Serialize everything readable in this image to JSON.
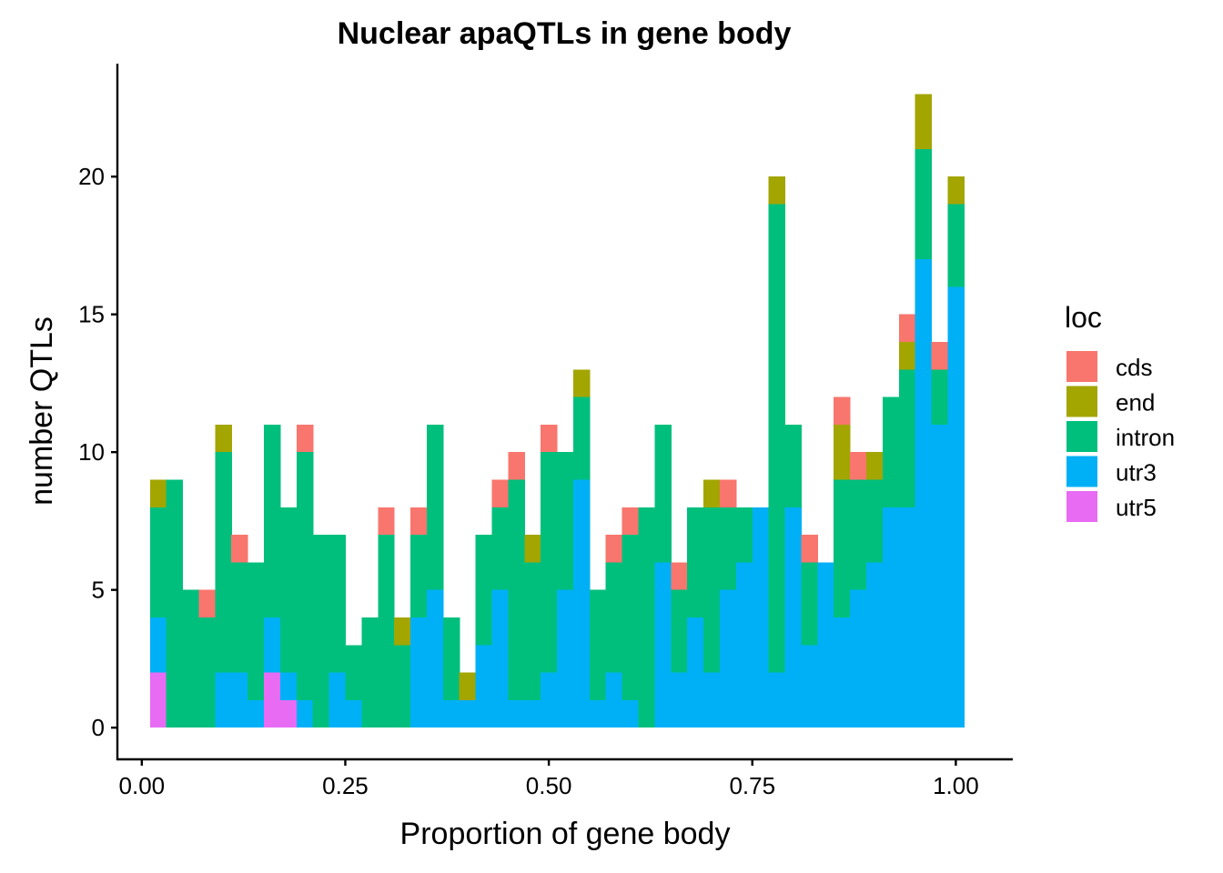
{
  "chart_data": {
    "type": "bar",
    "subtype": "stacked-histogram",
    "title": "Nuclear apaQTLs in gene body",
    "xlabel": "Proportion of gene body",
    "ylabel": "number QTLs",
    "xlim": [
      -0.03,
      1.07
    ],
    "ylim": [
      -1.15,
      24.1
    ],
    "x_ticks": [
      0.0,
      0.25,
      0.5,
      0.75,
      1.0
    ],
    "x_tick_labels": [
      "0.00",
      "0.25",
      "0.50",
      "0.75",
      "1.00"
    ],
    "y_ticks": [
      0,
      5,
      10,
      15,
      20
    ],
    "y_tick_labels": [
      "0",
      "5",
      "10",
      "15",
      "20"
    ],
    "bin_width": 0.02,
    "bin_centers": [
      0.02,
      0.04,
      0.06,
      0.08,
      0.1,
      0.12,
      0.14,
      0.16,
      0.18,
      0.2,
      0.22,
      0.24,
      0.26,
      0.28,
      0.3,
      0.32,
      0.34,
      0.36,
      0.38,
      0.4,
      0.42,
      0.44,
      0.46,
      0.48,
      0.5,
      0.52,
      0.54,
      0.56,
      0.58,
      0.6,
      0.62,
      0.64,
      0.66,
      0.68,
      0.7,
      0.72,
      0.74,
      0.76,
      0.78,
      0.8,
      0.82,
      0.84,
      0.86,
      0.88,
      0.9,
      0.92,
      0.94,
      0.96,
      0.98,
      1.0
    ],
    "stack_order": [
      "utr5",
      "utr3",
      "intron",
      "end",
      "cds"
    ],
    "legend": {
      "title": "loc",
      "position": "right",
      "entries": [
        {
          "label": "cds",
          "color": "#F8766D"
        },
        {
          "label": "end",
          "color": "#A3A500"
        },
        {
          "label": "intron",
          "color": "#00BF7D"
        },
        {
          "label": "utr3",
          "color": "#00B0F6"
        },
        {
          "label": "utr5",
          "color": "#E76BF3"
        }
      ]
    },
    "series": [
      {
        "name": "utr5",
        "color": "#E76BF3",
        "values": [
          2,
          0,
          0,
          0,
          0,
          0,
          0,
          2,
          1,
          0,
          0,
          0,
          0,
          0,
          0,
          0,
          0,
          0,
          0,
          0,
          0,
          0,
          0,
          0,
          0,
          0,
          0,
          0,
          0,
          0,
          0,
          0,
          0,
          0,
          0,
          0,
          0,
          0,
          0,
          0,
          0,
          0,
          0,
          0,
          0,
          0,
          0,
          0,
          0,
          0
        ]
      },
      {
        "name": "utr3",
        "color": "#00B0F6",
        "values": [
          2,
          0,
          0,
          0,
          2,
          2,
          1,
          2,
          1,
          1,
          0,
          2,
          1,
          0,
          0,
          0,
          4,
          5,
          1,
          1,
          3,
          5,
          1,
          1,
          2,
          5,
          9,
          1,
          2,
          1,
          0,
          6,
          2,
          4,
          2,
          5,
          6,
          8,
          2,
          8,
          3,
          6,
          4,
          5,
          6,
          8,
          8,
          17,
          11,
          16
        ]
      },
      {
        "name": "intron",
        "color": "#00BF7D",
        "values": [
          4,
          9,
          5,
          4,
          8,
          4,
          5,
          7,
          6,
          9,
          7,
          5,
          2,
          4,
          7,
          3,
          3,
          6,
          3,
          0,
          4,
          3,
          8,
          5,
          8,
          5,
          3,
          4,
          4,
          6,
          8,
          5,
          3,
          4,
          6,
          3,
          2,
          0,
          17,
          3,
          3,
          0,
          5,
          4,
          3,
          4,
          5,
          4,
          2,
          3
        ]
      },
      {
        "name": "end",
        "color": "#A3A500",
        "values": [
          1,
          0,
          0,
          0,
          1,
          0,
          0,
          0,
          0,
          0,
          0,
          0,
          0,
          0,
          0,
          1,
          0,
          0,
          0,
          1,
          0,
          0,
          0,
          1,
          0,
          0,
          1,
          0,
          0,
          0,
          0,
          0,
          0,
          0,
          1,
          0,
          0,
          0,
          1,
          0,
          0,
          0,
          2,
          0,
          1,
          0,
          1,
          2,
          0,
          1
        ]
      },
      {
        "name": "cds",
        "color": "#F8766D",
        "values": [
          0,
          0,
          0,
          1,
          0,
          1,
          0,
          0,
          0,
          1,
          0,
          0,
          0,
          0,
          1,
          0,
          1,
          0,
          0,
          0,
          0,
          1,
          1,
          0,
          1,
          0,
          0,
          0,
          1,
          1,
          0,
          0,
          1,
          0,
          0,
          1,
          0,
          0,
          0,
          0,
          1,
          0,
          1,
          1,
          0,
          0,
          1,
          0,
          1,
          0
        ]
      }
    ]
  }
}
